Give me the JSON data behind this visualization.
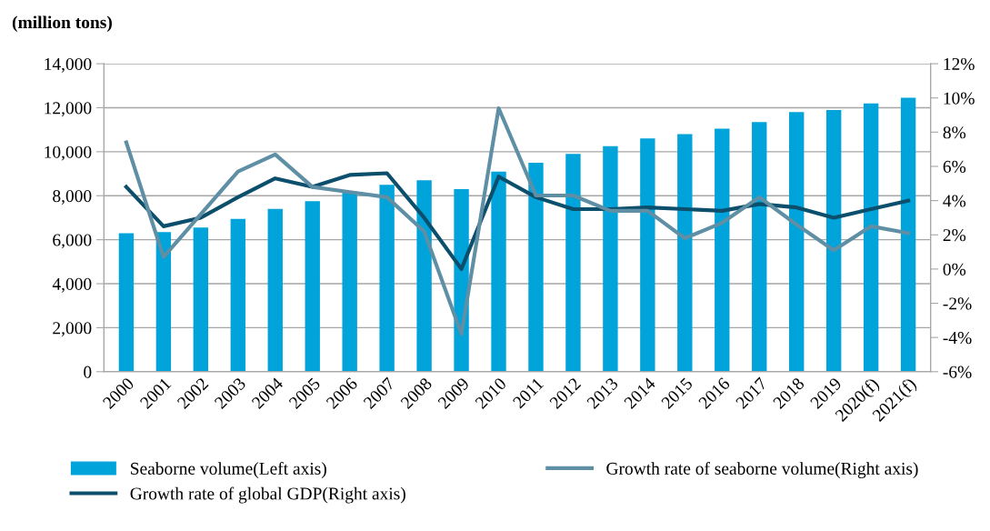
{
  "chart_data": {
    "type": "bar",
    "ylabel": "(million tons)",
    "categories": [
      "2000",
      "2001",
      "2002",
      "2003",
      "2004",
      "2005",
      "2006",
      "2007",
      "2008",
      "2009",
      "2010",
      "2011",
      "2012",
      "2013",
      "2014",
      "2015",
      "2016",
      "2017",
      "2018",
      "2019",
      "2020(f)",
      "2021(f)"
    ],
    "series": [
      {
        "name": "Seaborne volume(Left axis)",
        "color": "#00a3da",
        "values": [
          6300,
          6350,
          6550,
          6950,
          7400,
          7750,
          8200,
          8500,
          8700,
          8300,
          9100,
          9500,
          9900,
          10250,
          10600,
          10800,
          11050,
          11350,
          11800,
          11900,
          12200,
          12450
        ]
      },
      {
        "name": "Growth rate of global GDP(Right axis)",
        "type": "line",
        "axis": "y2",
        "color": "#0b4f6c",
        "values": [
          4.8,
          2.5,
          3.0,
          4.2,
          5.3,
          4.8,
          5.5,
          5.6,
          3.0,
          0.0,
          5.4,
          4.2,
          3.5,
          3.5,
          3.6,
          3.5,
          3.4,
          3.8,
          3.6,
          3.0,
          3.5,
          4.0
        ]
      },
      {
        "name": "Growth rate of seaborne volume(Right axis)",
        "type": "line",
        "axis": "y2",
        "color": "#5f8fa5",
        "values": [
          7.4,
          0.7,
          3.2,
          5.7,
          6.7,
          4.8,
          4.5,
          4.2,
          2.2,
          -3.8,
          9.4,
          4.3,
          4.3,
          3.4,
          3.4,
          1.8,
          2.7,
          4.2,
          2.6,
          1.1,
          2.5,
          2.1
        ]
      }
    ],
    "ylim": [
      0,
      14000
    ],
    "yticks": [
      0,
      {
        "value": 2000,
        "label": "2,000"
      },
      {
        "value": 4000,
        "label": "4,000"
      },
      {
        "value": 6000,
        "label": "6,000"
      },
      {
        "value": 8000,
        "label": "8,000"
      },
      {
        "value": 10000,
        "label": "10,000"
      },
      {
        "value": 12000,
        "label": "12,000"
      },
      {
        "value": 14000,
        "label": "14,000"
      }
    ],
    "y2lim": [
      -6,
      12
    ],
    "y2ticks": [
      {
        "value": -6,
        "label": "-6%"
      },
      {
        "value": -4,
        "label": "-4%"
      },
      {
        "value": -2,
        "label": "-2%"
      },
      {
        "value": 0,
        "label": "0%"
      },
      {
        "value": 2,
        "label": "2%"
      },
      {
        "value": 4,
        "label": "4%"
      },
      {
        "value": 6,
        "label": "6%"
      },
      {
        "value": 8,
        "label": "8%"
      },
      {
        "value": 10,
        "label": "10%"
      },
      {
        "value": 12,
        "label": "12%"
      }
    ],
    "grid": "y",
    "legend": "bottom",
    "marker": "none",
    "line_style": "solid"
  }
}
